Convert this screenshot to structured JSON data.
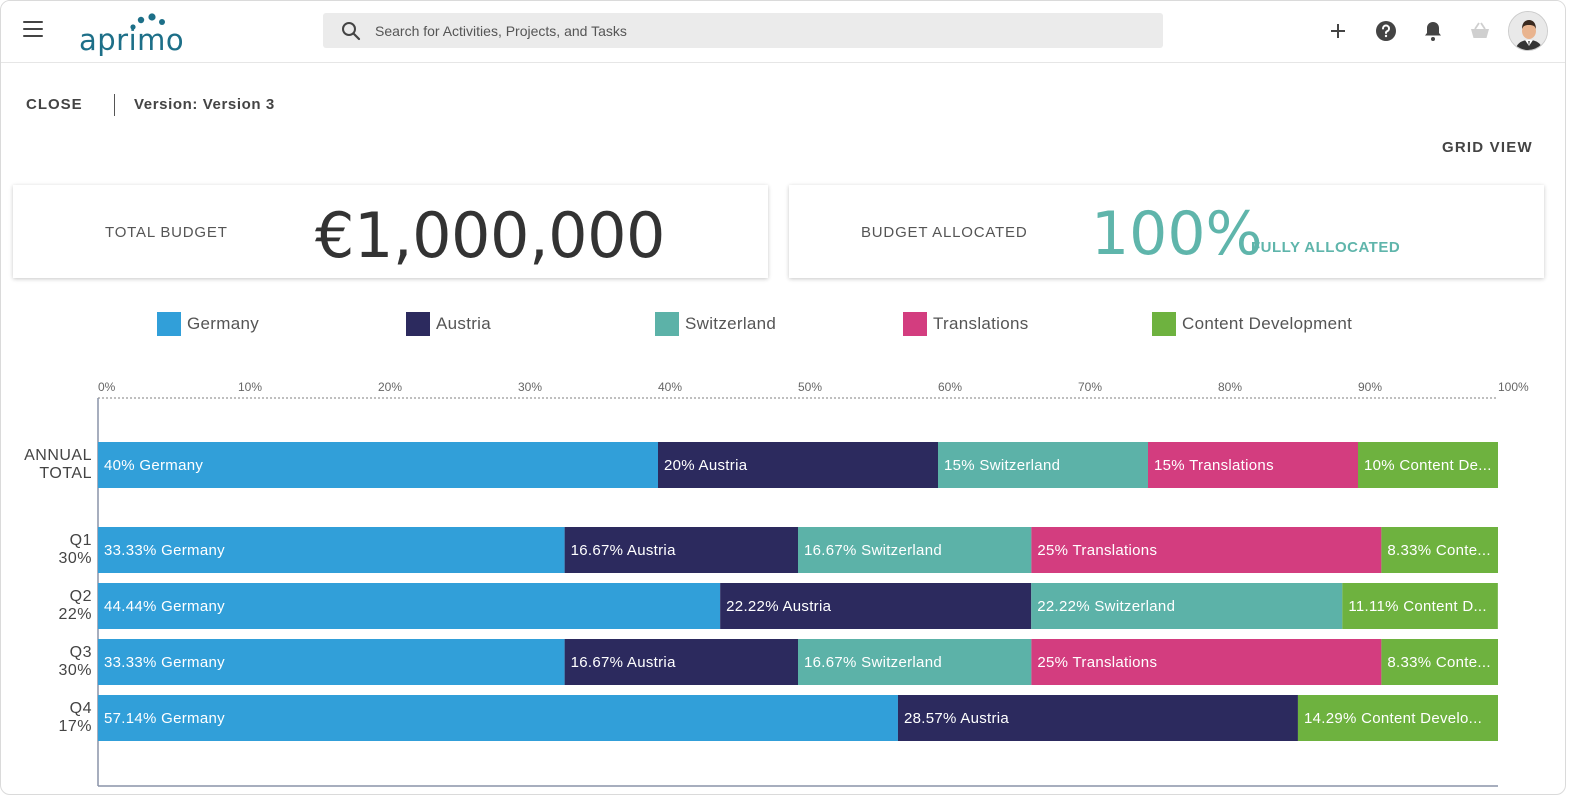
{
  "header": {
    "logo_text": "aprimo",
    "search_placeholder": "Search for Activities, Projects, and Tasks"
  },
  "subheader": {
    "close_label": "CLOSE",
    "version_label": "Version: Version 3",
    "grid_view_label": "GRID VIEW"
  },
  "cards": {
    "total_budget_label": "TOTAL BUDGET",
    "total_budget_value": "€1,000,000",
    "allocated_label": "BUDGET ALLOCATED",
    "allocated_value": "100%",
    "allocated_status": "FULLY ALLOCATED"
  },
  "colors": {
    "Germany": "#319fd9",
    "Austria": "#2c2a5e",
    "Switzerland": "#5cb2a8",
    "Translations": "#d33d7f",
    "Content Development": "#6eb23f",
    "accent": "#5fb5ab"
  },
  "legend": [
    "Germany",
    "Austria",
    "Switzerland",
    "Translations",
    "Content Development"
  ],
  "chart_data": {
    "type": "bar",
    "orientation": "horizontal",
    "stacked": true,
    "xlim": [
      0,
      100
    ],
    "x_ticks": [
      "0%",
      "10%",
      "20%",
      "30%",
      "40%",
      "50%",
      "60%",
      "70%",
      "80%",
      "90%",
      "100%"
    ],
    "rows": [
      {
        "label": [
          "ANNUAL",
          "TOTAL"
        ],
        "segments": [
          {
            "series": "Germany",
            "value": 40,
            "text": "40% Germany"
          },
          {
            "series": "Austria",
            "value": 20,
            "text": "20% Austria"
          },
          {
            "series": "Switzerland",
            "value": 15,
            "text": "15% Switzerland"
          },
          {
            "series": "Translations",
            "value": 15,
            "text": "15% Translations"
          },
          {
            "series": "Content Development",
            "value": 10,
            "text": "10% Content De..."
          }
        ]
      },
      {
        "label": [
          "Q1",
          "30%"
        ],
        "segments": [
          {
            "series": "Germany",
            "value": 33.33,
            "text": "33.33% Germany"
          },
          {
            "series": "Austria",
            "value": 16.67,
            "text": "16.67% Austria"
          },
          {
            "series": "Switzerland",
            "value": 16.67,
            "text": "16.67% Switzerland"
          },
          {
            "series": "Translations",
            "value": 25,
            "text": "25% Translations"
          },
          {
            "series": "Content Development",
            "value": 8.33,
            "text": "8.33% Conte..."
          }
        ]
      },
      {
        "label": [
          "Q2",
          "22%"
        ],
        "segments": [
          {
            "series": "Germany",
            "value": 44.44,
            "text": "44.44% Germany"
          },
          {
            "series": "Austria",
            "value": 22.22,
            "text": "22.22% Austria"
          },
          {
            "series": "Switzerland",
            "value": 22.22,
            "text": "22.22% Switzerland"
          },
          {
            "series": "Content Development",
            "value": 11.11,
            "text": "11.11% Content D..."
          }
        ]
      },
      {
        "label": [
          "Q3",
          "30%"
        ],
        "segments": [
          {
            "series": "Germany",
            "value": 33.33,
            "text": "33.33% Germany"
          },
          {
            "series": "Austria",
            "value": 16.67,
            "text": "16.67% Austria"
          },
          {
            "series": "Switzerland",
            "value": 16.67,
            "text": "16.67% Switzerland"
          },
          {
            "series": "Translations",
            "value": 25,
            "text": "25% Translations"
          },
          {
            "series": "Content Development",
            "value": 8.33,
            "text": "8.33% Conte..."
          }
        ]
      },
      {
        "label": [
          "Q4",
          "17%"
        ],
        "segments": [
          {
            "series": "Germany",
            "value": 57.14,
            "text": "57.14% Germany"
          },
          {
            "series": "Austria",
            "value": 28.57,
            "text": "28.57% Austria"
          },
          {
            "series": "Content Development",
            "value": 14.29,
            "text": "14.29% Content Develo..."
          }
        ]
      }
    ]
  }
}
